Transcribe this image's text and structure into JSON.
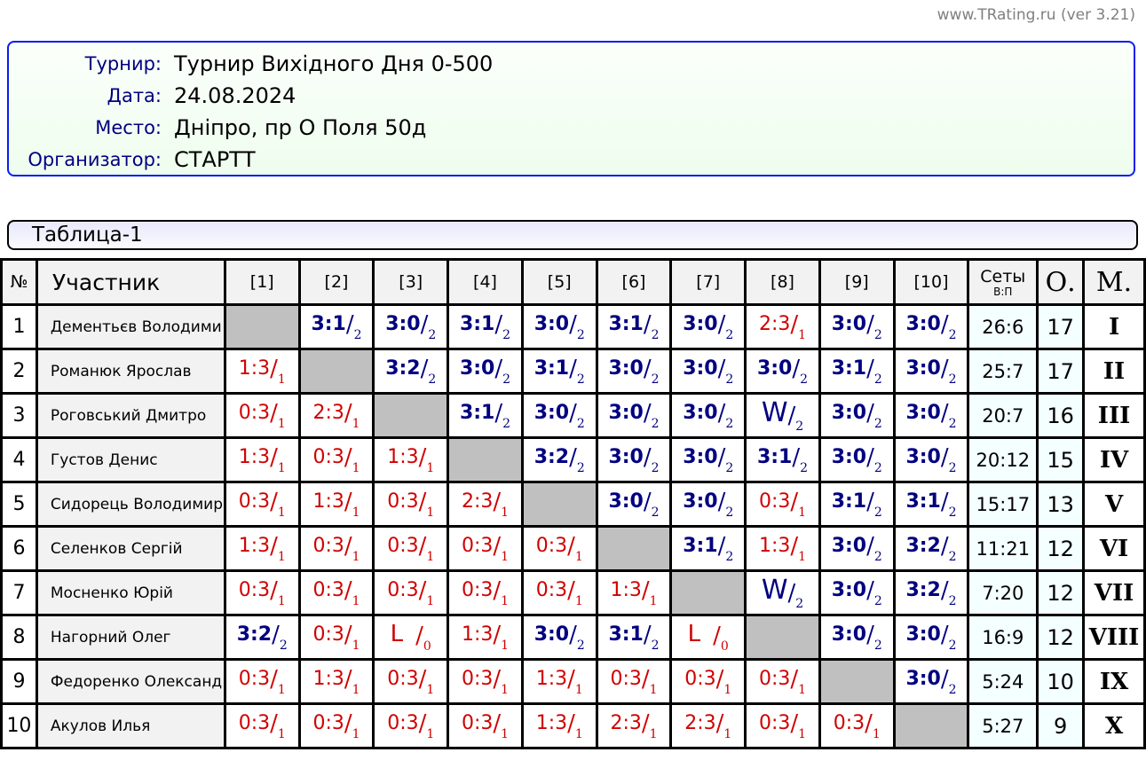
{
  "site": "www.TRating.ru (ver 3.21)",
  "info": [
    {
      "label": "Турнир:",
      "value": "Турнир Вихідного Дня 0-500"
    },
    {
      "label": "Дата:",
      "value": "24.08.2024"
    },
    {
      "label": "Место:",
      "value": "Дніпро, пр О Поля 50д"
    },
    {
      "label": "Организатор:",
      "value": "СТАРТТ"
    }
  ],
  "table_title": "Таблица-1",
  "colors": {
    "win": "#000080",
    "loss": "#d00000",
    "diagonal": "#c0c0c0",
    "frame": "#0a1ef0"
  },
  "headers": {
    "num": "№",
    "name": "Участник",
    "cols": [
      "[1]",
      "[2]",
      "[3]",
      "[4]",
      "[5]",
      "[6]",
      "[7]",
      "[8]",
      "[9]",
      "[10]"
    ],
    "sets": "Сеты",
    "sets_sub": "В:П",
    "points": "О.",
    "place": "М."
  },
  "rows": [
    {
      "n": "1",
      "name": "Дементьєв Володими",
      "res": [
        null,
        {
          "s": "3:1",
          "p": "2"
        },
        {
          "s": "3:0",
          "p": "2"
        },
        {
          "s": "3:1",
          "p": "2"
        },
        {
          "s": "3:0",
          "p": "2"
        },
        {
          "s": "3:1",
          "p": "2"
        },
        {
          "s": "3:0",
          "p": "2"
        },
        {
          "s": "2:3",
          "p": "1"
        },
        {
          "s": "3:0",
          "p": "2"
        },
        {
          "s": "3:0",
          "p": "2"
        }
      ],
      "sets": "26:6",
      "pts": "17",
      "place": "I"
    },
    {
      "n": "2",
      "name": "Романюк Ярослав",
      "res": [
        {
          "s": "1:3",
          "p": "1"
        },
        null,
        {
          "s": "3:2",
          "p": "2"
        },
        {
          "s": "3:0",
          "p": "2"
        },
        {
          "s": "3:1",
          "p": "2"
        },
        {
          "s": "3:0",
          "p": "2"
        },
        {
          "s": "3:0",
          "p": "2"
        },
        {
          "s": "3:0",
          "p": "2"
        },
        {
          "s": "3:1",
          "p": "2"
        },
        {
          "s": "3:0",
          "p": "2"
        }
      ],
      "sets": "25:7",
      "pts": "17",
      "place": "II"
    },
    {
      "n": "3",
      "name": "Роговський Дмитро",
      "res": [
        {
          "s": "0:3",
          "p": "1"
        },
        {
          "s": "2:3",
          "p": "1"
        },
        null,
        {
          "s": "3:1",
          "p": "2"
        },
        {
          "s": "3:0",
          "p": "2"
        },
        {
          "s": "3:0",
          "p": "2"
        },
        {
          "s": "3:0",
          "p": "2"
        },
        {
          "s": "W",
          "p": "2"
        },
        {
          "s": "3:0",
          "p": "2"
        },
        {
          "s": "3:0",
          "p": "2"
        }
      ],
      "sets": "20:7",
      "pts": "16",
      "place": "III"
    },
    {
      "n": "4",
      "name": "Густов Денис",
      "res": [
        {
          "s": "1:3",
          "p": "1"
        },
        {
          "s": "0:3",
          "p": "1"
        },
        {
          "s": "1:3",
          "p": "1"
        },
        null,
        {
          "s": "3:2",
          "p": "2"
        },
        {
          "s": "3:0",
          "p": "2"
        },
        {
          "s": "3:0",
          "p": "2"
        },
        {
          "s": "3:1",
          "p": "2"
        },
        {
          "s": "3:0",
          "p": "2"
        },
        {
          "s": "3:0",
          "p": "2"
        }
      ],
      "sets": "20:12",
      "pts": "15",
      "place": "IV"
    },
    {
      "n": "5",
      "name": "Сидорець Володимир",
      "res": [
        {
          "s": "0:3",
          "p": "1"
        },
        {
          "s": "1:3",
          "p": "1"
        },
        {
          "s": "0:3",
          "p": "1"
        },
        {
          "s": "2:3",
          "p": "1"
        },
        null,
        {
          "s": "3:0",
          "p": "2"
        },
        {
          "s": "3:0",
          "p": "2"
        },
        {
          "s": "0:3",
          "p": "1"
        },
        {
          "s": "3:1",
          "p": "2"
        },
        {
          "s": "3:1",
          "p": "2"
        }
      ],
      "sets": "15:17",
      "pts": "13",
      "place": "V"
    },
    {
      "n": "6",
      "name": "Селенков Сергій",
      "res": [
        {
          "s": "1:3",
          "p": "1"
        },
        {
          "s": "0:3",
          "p": "1"
        },
        {
          "s": "0:3",
          "p": "1"
        },
        {
          "s": "0:3",
          "p": "1"
        },
        {
          "s": "0:3",
          "p": "1"
        },
        null,
        {
          "s": "3:1",
          "p": "2"
        },
        {
          "s": "1:3",
          "p": "1"
        },
        {
          "s": "3:0",
          "p": "2"
        },
        {
          "s": "3:2",
          "p": "2"
        }
      ],
      "sets": "11:21",
      "pts": "12",
      "place": "VI"
    },
    {
      "n": "7",
      "name": "Мосненко Юрій",
      "res": [
        {
          "s": "0:3",
          "p": "1"
        },
        {
          "s": "0:3",
          "p": "1"
        },
        {
          "s": "0:3",
          "p": "1"
        },
        {
          "s": "0:3",
          "p": "1"
        },
        {
          "s": "0:3",
          "p": "1"
        },
        {
          "s": "1:3",
          "p": "1"
        },
        null,
        {
          "s": "W",
          "p": "2"
        },
        {
          "s": "3:0",
          "p": "2"
        },
        {
          "s": "3:2",
          "p": "2"
        }
      ],
      "sets": "7:20",
      "pts": "12",
      "place": "VII"
    },
    {
      "n": "8",
      "name": "Нагорний Олег",
      "res": [
        {
          "s": "3:2",
          "p": "2"
        },
        {
          "s": "0:3",
          "p": "1"
        },
        {
          "s": "L",
          "p": "0"
        },
        {
          "s": "1:3",
          "p": "1"
        },
        {
          "s": "3:0",
          "p": "2"
        },
        {
          "s": "3:1",
          "p": "2"
        },
        {
          "s": "L",
          "p": "0"
        },
        null,
        {
          "s": "3:0",
          "p": "2"
        },
        {
          "s": "3:0",
          "p": "2"
        }
      ],
      "sets": "16:9",
      "pts": "12",
      "place": "VIII"
    },
    {
      "n": "9",
      "name": "Федоренко Олександ",
      "res": [
        {
          "s": "0:3",
          "p": "1"
        },
        {
          "s": "1:3",
          "p": "1"
        },
        {
          "s": "0:3",
          "p": "1"
        },
        {
          "s": "0:3",
          "p": "1"
        },
        {
          "s": "1:3",
          "p": "1"
        },
        {
          "s": "0:3",
          "p": "1"
        },
        {
          "s": "0:3",
          "p": "1"
        },
        {
          "s": "0:3",
          "p": "1"
        },
        null,
        {
          "s": "3:0",
          "p": "2"
        }
      ],
      "sets": "5:24",
      "pts": "10",
      "place": "IX"
    },
    {
      "n": "10",
      "name": "Акулов Илья",
      "res": [
        {
          "s": "0:3",
          "p": "1"
        },
        {
          "s": "0:3",
          "p": "1"
        },
        {
          "s": "0:3",
          "p": "1"
        },
        {
          "s": "0:3",
          "p": "1"
        },
        {
          "s": "1:3",
          "p": "1"
        },
        {
          "s": "2:3",
          "p": "1"
        },
        {
          "s": "2:3",
          "p": "1"
        },
        {
          "s": "0:3",
          "p": "1"
        },
        {
          "s": "0:3",
          "p": "1"
        },
        null
      ],
      "sets": "5:27",
      "pts": "9",
      "place": "X"
    }
  ]
}
